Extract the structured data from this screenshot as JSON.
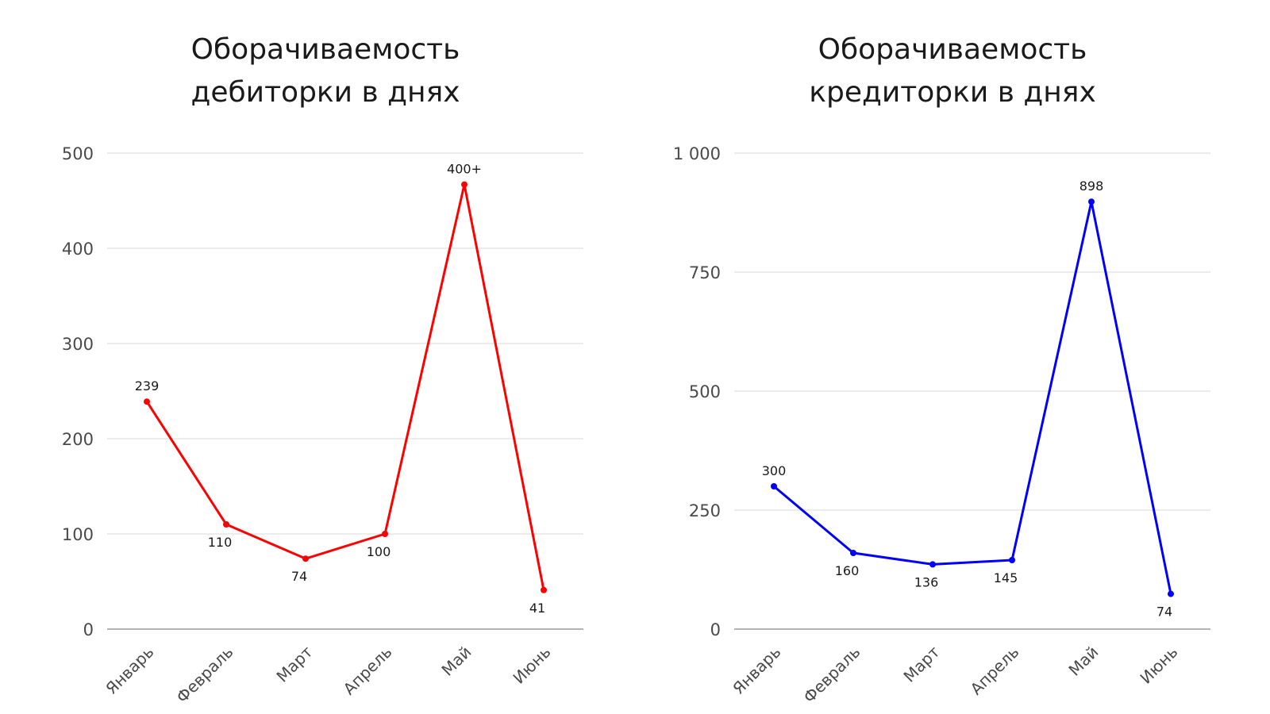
{
  "chart_data": [
    {
      "type": "line",
      "title": [
        "Оборачиваемость",
        "дебиторки в днях"
      ],
      "categories": [
        "Январь",
        "Февраль",
        "Март",
        "Апрель",
        "Май",
        "Июнь"
      ],
      "series": [
        {
          "values": [
            239,
            110,
            74,
            100,
            467,
            41
          ],
          "color": "#ff0000"
        }
      ],
      "data_labels": [
        "239",
        "110",
        "74",
        "100",
        "400+",
        "41"
      ],
      "label_position": [
        "above",
        "below",
        "below",
        "below",
        "above",
        "below"
      ],
      "y_ticks": [
        0,
        100,
        200,
        300,
        400,
        500
      ],
      "y_tick_labels": [
        "0",
        "100",
        "200",
        "300",
        "400",
        "500"
      ],
      "ylim": [
        0,
        500
      ],
      "grid": true,
      "legend": "none"
    },
    {
      "type": "line",
      "title": [
        "Оборачиваемость",
        "кредиторки в днях"
      ],
      "categories": [
        "Январь",
        "Февраль",
        "Март",
        "Апрель",
        "Май",
        "Июнь"
      ],
      "series": [
        {
          "values": [
            300,
            160,
            136,
            145,
            898,
            74
          ],
          "color": "#0000ff"
        }
      ],
      "data_labels": [
        "300",
        "160",
        "136",
        "145",
        "898",
        "74"
      ],
      "label_position": [
        "above",
        "below",
        "below",
        "below",
        "above",
        "below"
      ],
      "y_ticks": [
        0,
        250,
        500,
        750,
        1000
      ],
      "y_tick_labels": [
        "0",
        "250",
        "500",
        "750",
        "1 000"
      ],
      "ylim": [
        0,
        1000
      ],
      "grid": true,
      "legend": "none"
    }
  ]
}
